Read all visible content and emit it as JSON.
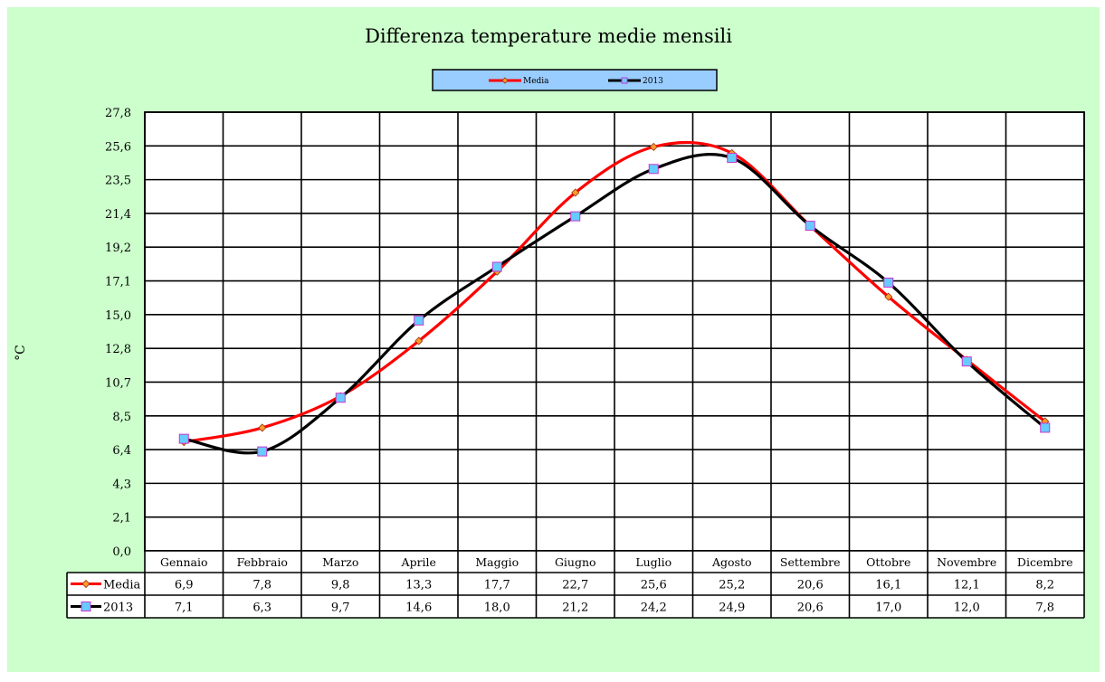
{
  "colors": {
    "background": "#ccffcc",
    "legend_background": "#99ccff",
    "media_line": "#ff0000",
    "line_2013": "#000000",
    "media_marker": "#ff9933",
    "marker_2013": "#66ccff",
    "marker_2013_border": "#cc33cc"
  },
  "chart_data": {
    "type": "line",
    "title": "Differenza temperature medie mensili",
    "xlabel": "",
    "ylabel": "°C",
    "ylim": [
      0,
      27.8
    ],
    "yticks": [
      "0,0",
      "2,1",
      "4,3",
      "6,4",
      "8,5",
      "10,7",
      "12,8",
      "15,0",
      "17,1",
      "19,2",
      "21,4",
      "23,5",
      "25,6",
      "27,8"
    ],
    "grid": true,
    "legend_position": "top-center",
    "categories": [
      "Gennaio",
      "Febbraio",
      "Marzo",
      "Aprile",
      "Maggio",
      "Giugno",
      "Luglio",
      "Agosto",
      "Settembre",
      "Ottobre",
      "Novembre",
      "Dicembre"
    ],
    "series": [
      {
        "name": "Media",
        "values": [
          6.9,
          7.8,
          9.8,
          13.3,
          17.7,
          22.7,
          25.6,
          25.2,
          20.6,
          16.1,
          12.1,
          8.2
        ],
        "labels": [
          "6,9",
          "7,8",
          "9,8",
          "13,3",
          "17,7",
          "22,7",
          "25,6",
          "25,2",
          "20,6",
          "16,1",
          "12,1",
          "8,2"
        ]
      },
      {
        "name": "2013",
        "values": [
          7.1,
          6.3,
          9.7,
          14.6,
          18.0,
          21.2,
          24.2,
          24.9,
          20.6,
          17.0,
          12.0,
          7.8
        ],
        "labels": [
          "7,1",
          "6,3",
          "9,7",
          "14,6",
          "18,0",
          "21,2",
          "24,2",
          "24,9",
          "20,6",
          "17,0",
          "12,0",
          "7,8"
        ]
      }
    ]
  }
}
